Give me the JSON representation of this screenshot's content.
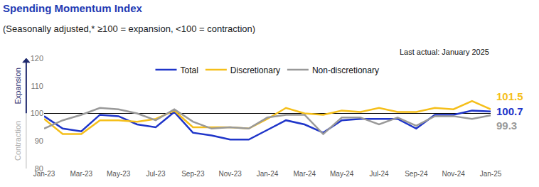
{
  "chart_data": {
    "type": "line",
    "title": "Spending Momentum Index",
    "subtitle": "(Seasonally adjusted,* ≥100 = expansion, <100 = contraction)",
    "annotations": [
      "Last actual: January 2025"
    ],
    "y_label_up": "Expansion",
    "y_label_down": "Contraction",
    "threshold": 100,
    "categories": [
      "Jan-23",
      null,
      "Mar-23",
      null,
      "May-23",
      null,
      "Jul-23",
      null,
      "Sep-23",
      null,
      "Nov-23",
      null,
      "Jan-24",
      null,
      "Mar-24",
      null,
      "May-24",
      null,
      "Jul-24",
      null,
      "Sep-24",
      null,
      "Nov-24",
      null,
      "Jan-25"
    ],
    "series": [
      {
        "name": "Total",
        "color": "#1f35c9",
        "values": [
          99,
          94.5,
          93.5,
          99.5,
          99,
          96,
          95,
          100.5,
          93,
          92,
          90.5,
          90.5,
          94,
          97.5,
          96,
          93,
          97.5,
          98,
          98,
          98,
          94.5,
          99.5,
          99.5,
          101,
          100.7
        ]
      },
      {
        "name": "Discretionary",
        "color": "#f5bf1a",
        "values": [
          98,
          92.5,
          92.5,
          97.5,
          97.5,
          97,
          98,
          101,
          95,
          95,
          95,
          94.5,
          98,
          102,
          100,
          99.5,
          101,
          100.5,
          102,
          100.5,
          100.5,
          102,
          101.5,
          104.5,
          101.5
        ]
      },
      {
        "name": "Non-discretionary",
        "color": "#999999",
        "values": [
          94.5,
          97.5,
          99.5,
          102,
          101.5,
          100,
          97.5,
          101.5,
          97,
          94.5,
          95,
          94.5,
          98.5,
          99.5,
          99.5,
          92.5,
          98.5,
          98.5,
          96,
          98.5,
          95.5,
          99,
          99,
          98,
          99.3
        ]
      }
    ],
    "ylim": [
      80,
      120
    ],
    "yticks": [
      80,
      90,
      100,
      110,
      120
    ],
    "grid": false,
    "legend": "top"
  }
}
